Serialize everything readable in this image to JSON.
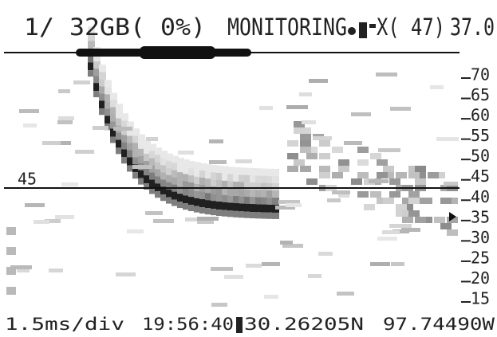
{
  "header": {
    "card": "1/ 32GB( 0%)",
    "mode": "MONITORING",
    "count": "X( 47)",
    "temperature": "37.0"
  },
  "frequency_scale": [
    70,
    65,
    60,
    55,
    50,
    45,
    40,
    35,
    30,
    25,
    20,
    15
  ],
  "marker": {
    "label": "45"
  },
  "footer": {
    "timebase": "1.5ms/div",
    "time": "19:56:40",
    "latitude": "30.26205N",
    "longitude": "97.74490W"
  }
}
